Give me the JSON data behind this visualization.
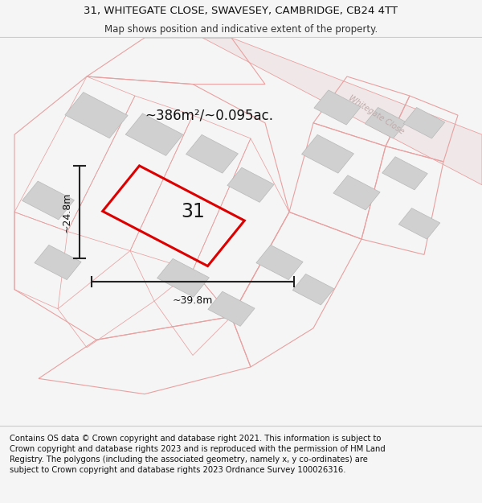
{
  "title_line1": "31, WHITEGATE CLOSE, SWAVESEY, CAMBRIDGE, CB24 4TT",
  "title_line2": "Map shows position and indicative extent of the property.",
  "footer_text": "Contains OS data © Crown copyright and database right 2021. This information is subject to Crown copyright and database rights 2023 and is reproduced with the permission of HM Land Registry. The polygons (including the associated geometry, namely x, y co-ordinates) are subject to Crown copyright and database rights 2023 Ordnance Survey 100026316.",
  "area_label": "~386m²/~0.095ac.",
  "width_label": "~39.8m",
  "height_label": "~24.8m",
  "plot_number": "31",
  "bg_color": "#f5f5f5",
  "map_bg": "#f0eeee",
  "road_color": "#e8a0a0",
  "building_color": "#d0d0d0",
  "building_edge": "#b8b8b8",
  "plot_color": "#dd0000",
  "road_label_color": "#c0b0b0",
  "road_label": "Whitegate Close",
  "title_fontsize": 9.5,
  "subtitle_fontsize": 8.5,
  "footer_fontsize": 7.2,
  "annotation_fontsize": 13
}
